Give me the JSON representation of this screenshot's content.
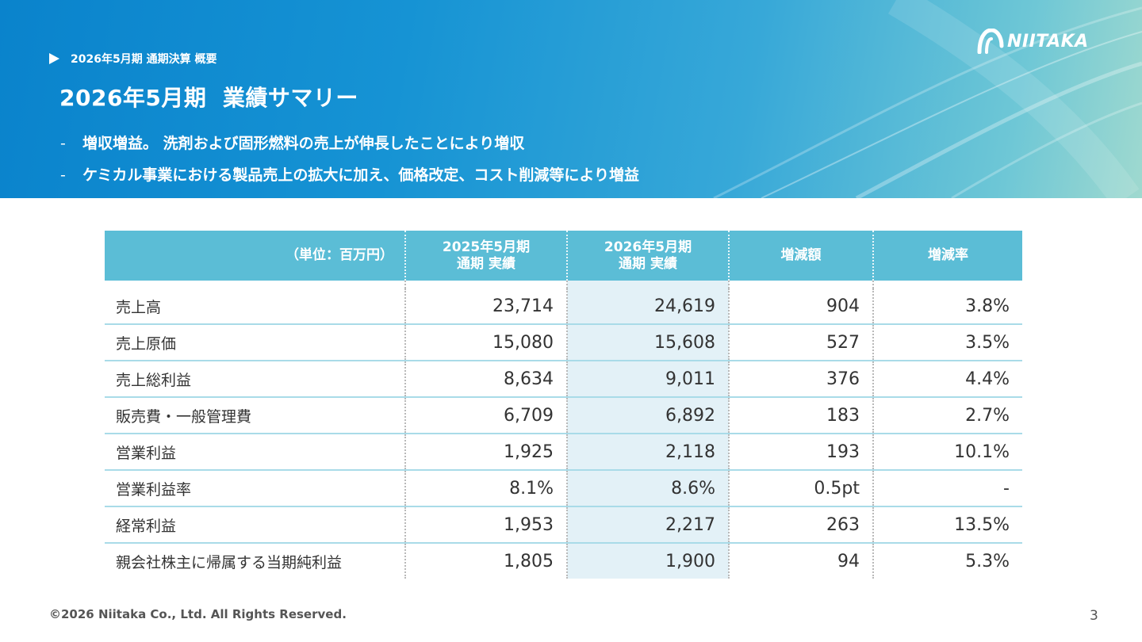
{
  "header": {
    "breadcrumb": "2026年5月期 通期決算 概要",
    "title": "2026年5月期  業績サマリー",
    "bullets": [
      "増収増益。 洗剤および固形燃料の売上が伸長したことにより増収",
      "ケミカル事業における製品売上の拡大に加え、価格改定、コスト削減等により増益"
    ],
    "bullet_marker": "-",
    "logo_text": "NIITAKA",
    "logo_icon": "niitaka-logo-icon"
  },
  "table": {
    "unit_label": "（単位：百万円）",
    "columns": [
      {
        "line1": "2025年5月期",
        "line2": "通期  実績"
      },
      {
        "line1": "2026年5月期",
        "line2": "通期  実績"
      },
      {
        "line1": "増減額",
        "line2": ""
      },
      {
        "line1": "増減率",
        "line2": ""
      }
    ],
    "rows": [
      {
        "label": "売上高",
        "fy2025": "23,714",
        "fy2026": "24,619",
        "change": "904",
        "rate": "3.8%"
      },
      {
        "label": "売上原価",
        "fy2025": "15,080",
        "fy2026": "15,608",
        "change": "527",
        "rate": "3.5%"
      },
      {
        "label": "売上総利益",
        "fy2025": "8,634",
        "fy2026": "9,011",
        "change": "376",
        "rate": "4.4%"
      },
      {
        "label": "販売費・一般管理費",
        "fy2025": "6,709",
        "fy2026": "6,892",
        "change": "183",
        "rate": "2.7%"
      },
      {
        "label": "営業利益",
        "fy2025": "1,925",
        "fy2026": "2,118",
        "change": "193",
        "rate": "10.1%"
      },
      {
        "label": "営業利益率",
        "fy2025": "8.1%",
        "fy2026": "8.6%",
        "change": "0.5pt",
        "rate": "-"
      },
      {
        "label": "経常利益",
        "fy2025": "1,953",
        "fy2026": "2,217",
        "change": "263",
        "rate": "13.5%"
      },
      {
        "label": "親会社株主に帰属する当期純利益",
        "fy2025": "1,805",
        "fy2026": "1,900",
        "change": "94",
        "rate": "5.3%"
      }
    ]
  },
  "footer": {
    "copyright": "©2026 Niitaka Co., Ltd.  All Rights Reserved.",
    "page_number": "3"
  },
  "colors": {
    "header_bg": "#5bbdd6",
    "highlight_col": "#e3f1f7",
    "row_line": "#a9dbe8",
    "banner_start": "#0a83cc",
    "banner_end": "#9fd9cf"
  }
}
